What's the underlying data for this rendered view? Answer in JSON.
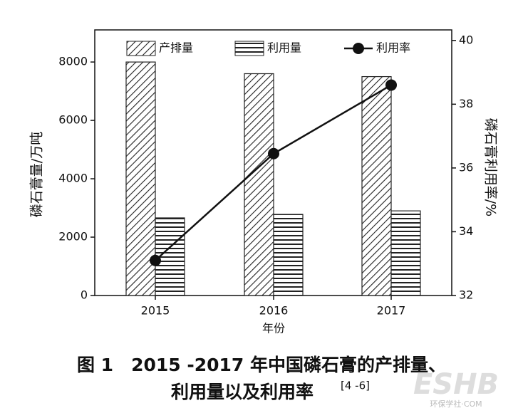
{
  "chart_data": {
    "type": "bar",
    "categories": [
      "2015",
      "2016",
      "2017"
    ],
    "series": [
      {
        "name": "产排量",
        "type": "bar",
        "pattern": "diagonal",
        "color": "#222222",
        "values": [
          8000,
          7600,
          7500
        ]
      },
      {
        "name": "利用量",
        "type": "bar",
        "pattern": "horizontal",
        "color": "#222222",
        "values": [
          2660,
          2780,
          2900
        ]
      },
      {
        "name": "利用率",
        "type": "line",
        "axis": "y2",
        "color": "#111111",
        "values": [
          33.1,
          36.45,
          38.6
        ]
      }
    ],
    "ylim": [
      0,
      9100
    ],
    "yticks": [
      0,
      2000,
      4000,
      6000,
      8000
    ],
    "y2lim": [
      32,
      40.33
    ],
    "y2ticks": [
      32,
      34,
      36,
      38,
      40
    ],
    "xlabel": "年份",
    "ylabel": "磷石膏量/万吨",
    "y2label": "磷石膏利用率/%",
    "legend": "top",
    "grid": false,
    "caption_lines": [
      "图 1　2015 -2017 年中国磷石膏的产排量、",
      "利用量以及利用率"
    ],
    "caption_ref": "[4 -6]",
    "watermark": [
      "ESHB",
      "环保学社·COM"
    ]
  }
}
